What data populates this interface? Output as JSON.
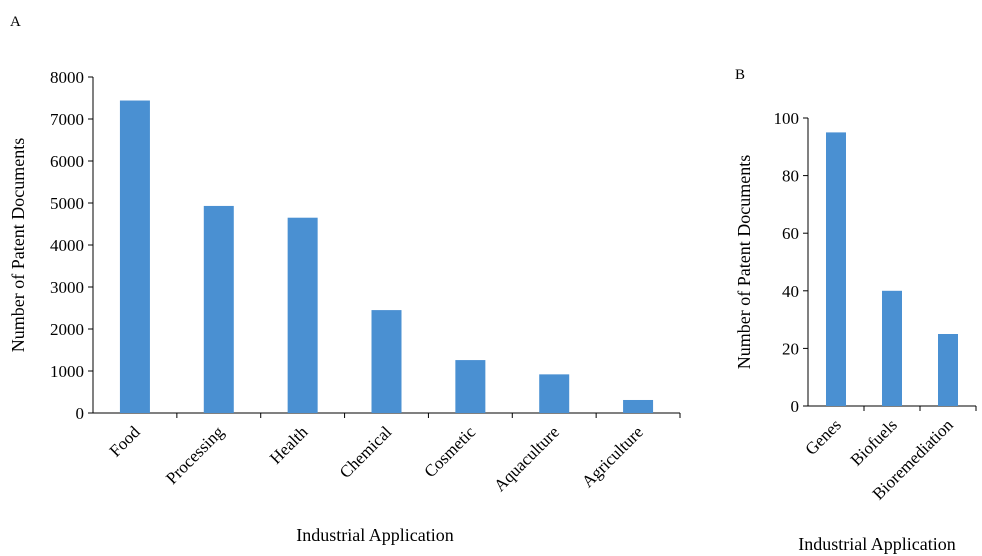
{
  "chart_data": [
    {
      "panel": "A",
      "type": "bar",
      "title": "",
      "xlabel": "Industrial Application",
      "ylabel": "Number of Patent Documents",
      "ylim": [
        0,
        8000
      ],
      "yticks": [
        0,
        1000,
        2000,
        3000,
        4000,
        5000,
        6000,
        7000,
        8000
      ],
      "categories": [
        "Food",
        "Processing",
        "Health",
        "Chemical",
        "Cosmetic",
        "Aquaculture",
        "Agriculture"
      ],
      "values": [
        7440,
        4930,
        4650,
        2450,
        1260,
        920,
        310
      ],
      "color": "#4a90d2",
      "grid": false,
      "legend": "none"
    },
    {
      "panel": "B",
      "type": "bar",
      "title": "",
      "xlabel": "Industrial Application",
      "ylabel": "Number of Patent Documents",
      "ylim": [
        0,
        100
      ],
      "yticks": [
        0,
        20,
        40,
        60,
        80,
        100
      ],
      "categories": [
        "Genes",
        "Biofuels",
        "Bioremediation"
      ],
      "values": [
        95,
        40,
        25
      ],
      "color": "#4a90d2",
      "grid": false,
      "legend": "none"
    }
  ]
}
